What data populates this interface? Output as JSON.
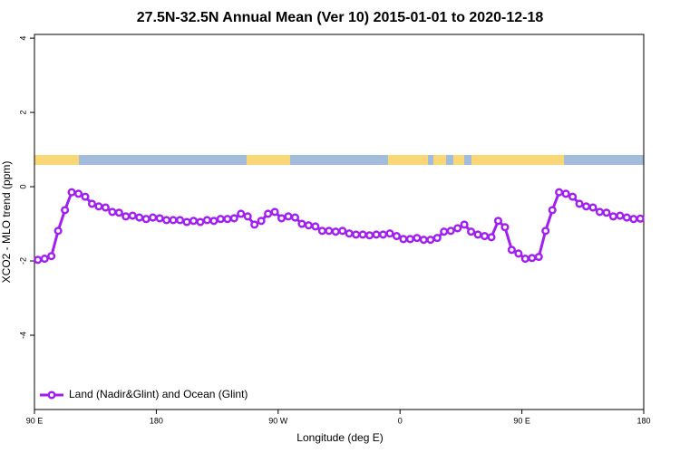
{
  "chart_data": {
    "type": "line",
    "title": "27.5N-32.5N Annual Mean (Ver 10)   2015-01-01 to 2020-12-18",
    "x_label": "Longitude (deg E)",
    "y_label": "XCO2 - MLO trend (ppm)",
    "xlim": [
      90,
      540
    ],
    "ylim": [
      -6,
      4.1
    ],
    "xticks": [
      {
        "value": 90,
        "label": "90 E"
      },
      180,
      {
        "value": 270,
        "label": "90 W"
      },
      {
        "value": 360,
        "label": "0"
      },
      {
        "value": 450,
        "label": "90 E"
      },
      {
        "value": 540,
        "label": "180"
      }
    ],
    "yticks": [
      -4,
      -2,
      0,
      2,
      4
    ],
    "legend_position": "bottom-left",
    "x": [
      92.5,
      97.5,
      102.5,
      107.5,
      112.5,
      117.5,
      122.5,
      127.5,
      132.5,
      137.5,
      142.5,
      147.5,
      152.5,
      157.5,
      162.5,
      167.5,
      172.5,
      177.5,
      182.5,
      187.5,
      192.5,
      197.5,
      202.5,
      207.5,
      212.5,
      217.5,
      222.5,
      227.5,
      232.5,
      237.5,
      242.5,
      247.5,
      252.5,
      257.5,
      262.5,
      267.5,
      272.5,
      277.5,
      282.5,
      287.5,
      292.5,
      297.5,
      302.5,
      307.5,
      312.5,
      317.5,
      322.5,
      327.5,
      332.5,
      337.5,
      342.5,
      347.5,
      352.5,
      357.5,
      362.5,
      367.5,
      372.5,
      377.5,
      382.5,
      387.5,
      392.5,
      397.5,
      402.5,
      407.5,
      412.5,
      417.5,
      422.5,
      427.5,
      432.5,
      437.5,
      442.5,
      447.5,
      452.5,
      457.5,
      462.5,
      467.5,
      472.5,
      477.5,
      482.5,
      487.5,
      492.5,
      497.5,
      502.5,
      507.5,
      512.5,
      517.5,
      522.5,
      527.5,
      532.5,
      537.5
    ],
    "series": [
      {
        "name": "Land (Nadir&Glint) and Ocean (Glint)",
        "color": "#a020f0",
        "values": [
          -1.97,
          -1.94,
          -1.87,
          -1.19,
          -0.63,
          -0.15,
          -0.19,
          -0.27,
          -0.46,
          -0.53,
          -0.56,
          -0.68,
          -0.7,
          -0.8,
          -0.78,
          -0.83,
          -0.87,
          -0.83,
          -0.85,
          -0.9,
          -0.9,
          -0.9,
          -0.95,
          -0.92,
          -0.95,
          -0.9,
          -0.92,
          -0.87,
          -0.87,
          -0.85,
          -0.73,
          -0.8,
          -1.02,
          -0.92,
          -0.73,
          -0.68,
          -0.85,
          -0.8,
          -0.83,
          -1.0,
          -1.04,
          -1.07,
          -1.19,
          -1.19,
          -1.21,
          -1.19,
          -1.26,
          -1.29,
          -1.29,
          -1.31,
          -1.29,
          -1.29,
          -1.26,
          -1.33,
          -1.41,
          -1.41,
          -1.38,
          -1.43,
          -1.43,
          -1.38,
          -1.21,
          -1.19,
          -1.12,
          -1.02,
          -1.21,
          -1.29,
          -1.33,
          -1.36,
          -0.92,
          -1.09,
          -1.7,
          -1.8,
          -1.94,
          -1.92,
          -1.89,
          -1.19,
          -0.63,
          -0.15,
          -0.19,
          -0.27,
          -0.46,
          -0.53,
          -0.56,
          -0.68,
          -0.7,
          -0.8,
          -0.78,
          -0.83,
          -0.87,
          -0.86
        ]
      }
    ]
  }
}
